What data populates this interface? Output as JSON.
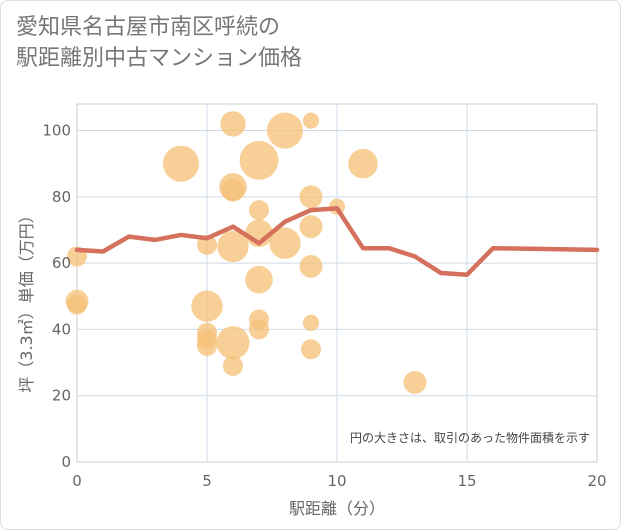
{
  "title": "愛知県名古屋市南区呼続の\n駅距離別中古マンション価格",
  "chart_data": {
    "type": "scatter",
    "title": "愛知県名古屋市南区呼続の駅距離別中古マンション価格",
    "xlabel": "駅距離（分）",
    "ylabel": "坪（3.3㎡）単価（万円）",
    "xlim": [
      0,
      20
    ],
    "ylim": [
      0,
      108
    ],
    "xticks": [
      "0",
      "5",
      "10",
      "15",
      "20"
    ],
    "yticks": [
      "0",
      "20",
      "40",
      "60",
      "80",
      "100"
    ],
    "grid": true,
    "note": "円の大きさは、取引のあった物件面積を示す",
    "bubble_color": "#f5c27a",
    "line_color": "#d4705c",
    "bubbles": [
      {
        "x": 0,
        "y": 62,
        "size": 2
      },
      {
        "x": 0,
        "y": 48.5,
        "size": 3
      },
      {
        "x": 0,
        "y": 47.5,
        "size": 2
      },
      {
        "x": 4,
        "y": 90,
        "size": 10
      },
      {
        "x": 5,
        "y": 65.5,
        "size": 2
      },
      {
        "x": 5,
        "y": 47,
        "size": 7
      },
      {
        "x": 5,
        "y": 39,
        "size": 2
      },
      {
        "x": 5,
        "y": 37,
        "size": 2
      },
      {
        "x": 5,
        "y": 35,
        "size": 2
      },
      {
        "x": 6,
        "y": 102,
        "size": 4
      },
      {
        "x": 6,
        "y": 83,
        "size": 5
      },
      {
        "x": 6,
        "y": 82,
        "size": 3
      },
      {
        "x": 6,
        "y": 65,
        "size": 7
      },
      {
        "x": 6,
        "y": 36,
        "size": 8
      },
      {
        "x": 6,
        "y": 29,
        "size": 2
      },
      {
        "x": 7,
        "y": 91,
        "size": 12
      },
      {
        "x": 7,
        "y": 76,
        "size": 2
      },
      {
        "x": 7,
        "y": 69,
        "size": 5
      },
      {
        "x": 7,
        "y": 55,
        "size": 5
      },
      {
        "x": 7,
        "y": 43,
        "size": 2
      },
      {
        "x": 7,
        "y": 40,
        "size": 2
      },
      {
        "x": 8,
        "y": 100,
        "size": 10
      },
      {
        "x": 8,
        "y": 66,
        "size": 7
      },
      {
        "x": 9,
        "y": 103,
        "size": 1
      },
      {
        "x": 9,
        "y": 80,
        "size": 3
      },
      {
        "x": 9,
        "y": 71,
        "size": 3
      },
      {
        "x": 9,
        "y": 59,
        "size": 3
      },
      {
        "x": 9,
        "y": 42,
        "size": 1
      },
      {
        "x": 9,
        "y": 34,
        "size": 2
      },
      {
        "x": 10,
        "y": 77,
        "size": 1
      },
      {
        "x": 11,
        "y": 90,
        "size": 6
      },
      {
        "x": 13,
        "y": 24,
        "size": 3
      }
    ],
    "series": [
      {
        "x": [
          0,
          1,
          2,
          3,
          4,
          5,
          6,
          7,
          8,
          9,
          10,
          11,
          12,
          13,
          14,
          15,
          16,
          20
        ],
        "values": [
          64,
          63.5,
          68,
          67,
          68.5,
          67.5,
          71,
          66,
          72.5,
          76,
          76.5,
          64.5,
          64.5,
          62,
          57,
          56.5,
          64.5,
          64
        ]
      }
    ]
  }
}
